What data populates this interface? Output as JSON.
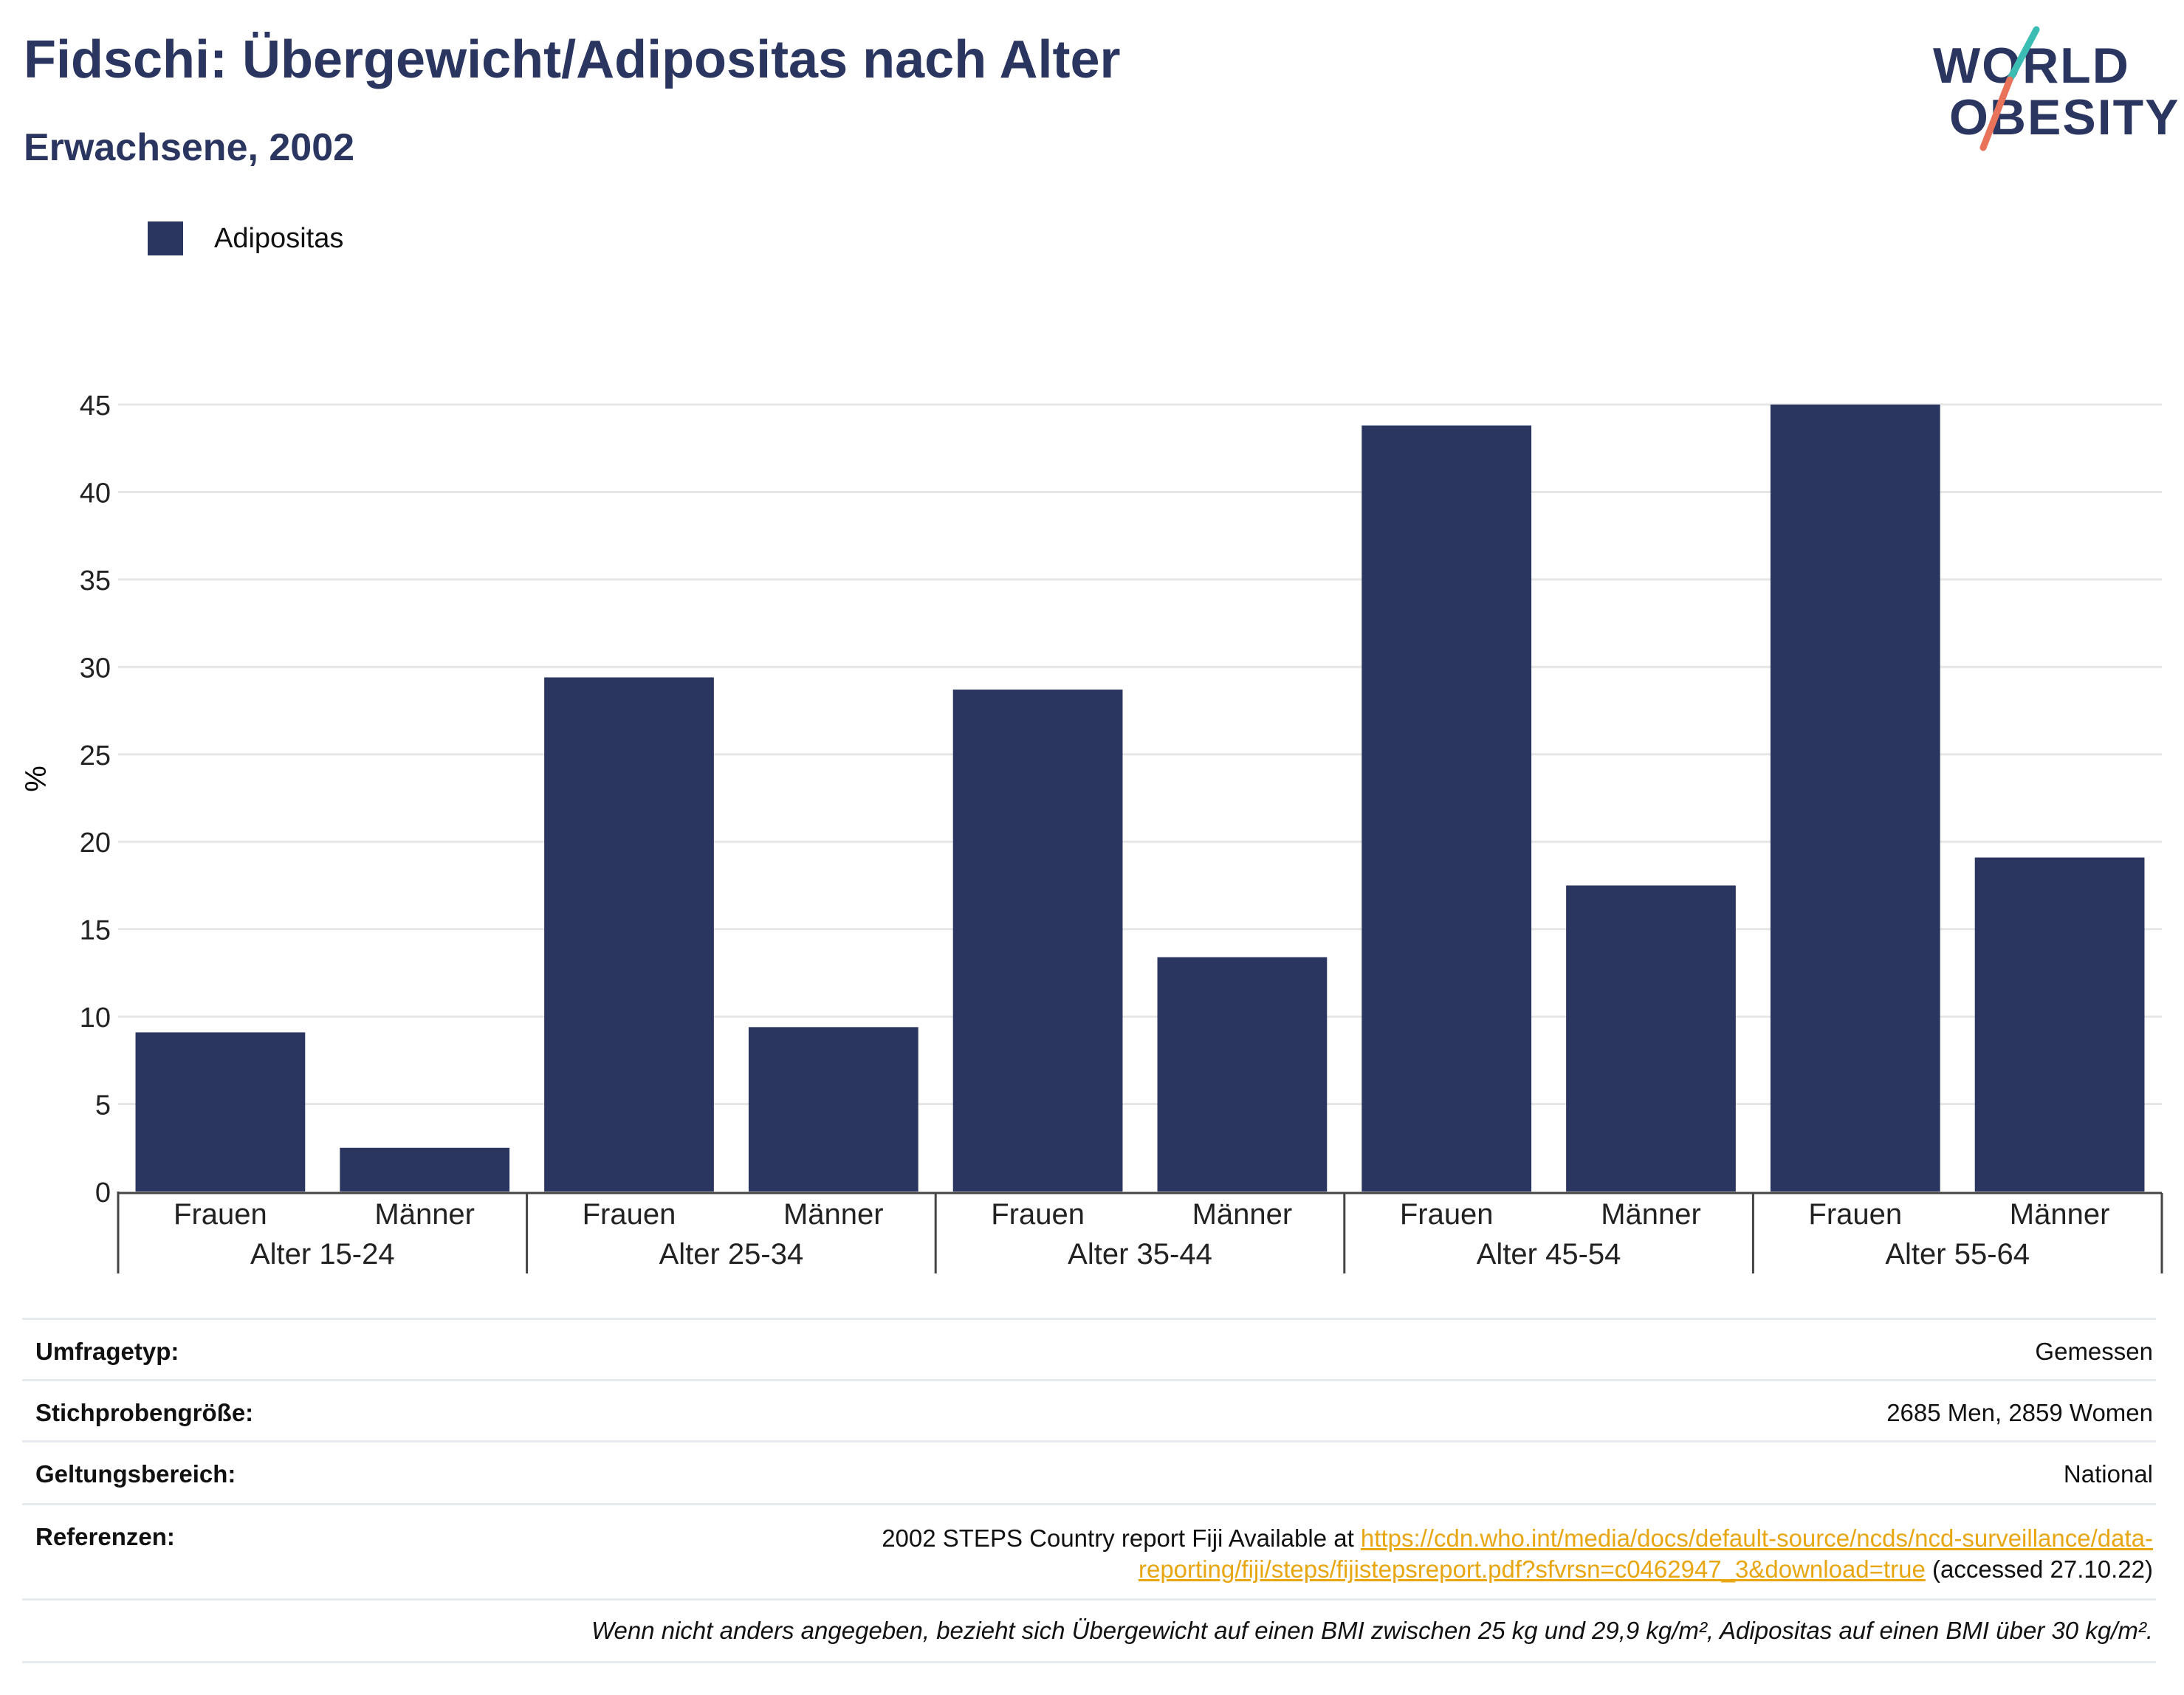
{
  "title": "Fidschi: Übergewicht/Adipositas nach Alter",
  "subtitle": "Erwachsene, 2002",
  "logo": {
    "line1": "WORLD",
    "line2": "OBESITY",
    "accent_teal": "#3bbdb4",
    "accent_coral": "#e8735a"
  },
  "colors": {
    "bar": "#2a3560",
    "link": "#e8a613",
    "title": "#2a3560"
  },
  "chart_data": {
    "type": "bar",
    "ylabel": "%",
    "xlabel": "",
    "ylim": [
      0,
      45
    ],
    "yticks": [
      0,
      5,
      10,
      15,
      20,
      25,
      30,
      35,
      40,
      45
    ],
    "grid": true,
    "legend_position": "top-left",
    "groups": [
      "Alter 15-24",
      "Alter 25-34",
      "Alter 35-44",
      "Alter 45-54",
      "Alter 55-64"
    ],
    "subcategories": [
      "Frauen",
      "Männer"
    ],
    "series": [
      {
        "name": "Adipositas",
        "values": [
          9.1,
          2.5,
          29.4,
          9.4,
          28.7,
          13.4,
          43.8,
          17.5,
          45.0,
          19.1
        ]
      }
    ]
  },
  "info": {
    "survey_type_label": "Umfragetyp:",
    "survey_type_value": "Gemessen",
    "sample_label": "Stichprobengröße:",
    "sample_value": "2685 Men, 2859 Women",
    "scope_label": "Geltungsbereich:",
    "scope_value": "National",
    "refs_label": "Referenzen:",
    "refs_prefix": "2002 STEPS Country report Fiji Available at ",
    "refs_link_1": "https://cdn.who.int/media/docs/default-source/ncds/ncd-surveillance/data-",
    "refs_link_2": "reporting/fiji/steps/fijistepsreport.pdf?sfvrsn=c0462947_3&download=true",
    "refs_suffix": " (accessed 27.10.22)",
    "note": "Wenn nicht anders angegeben, bezieht sich Übergewicht auf einen BMI zwischen 25 kg und 29,9 kg/m², Adipositas auf einen BMI über 30 kg/m²."
  }
}
